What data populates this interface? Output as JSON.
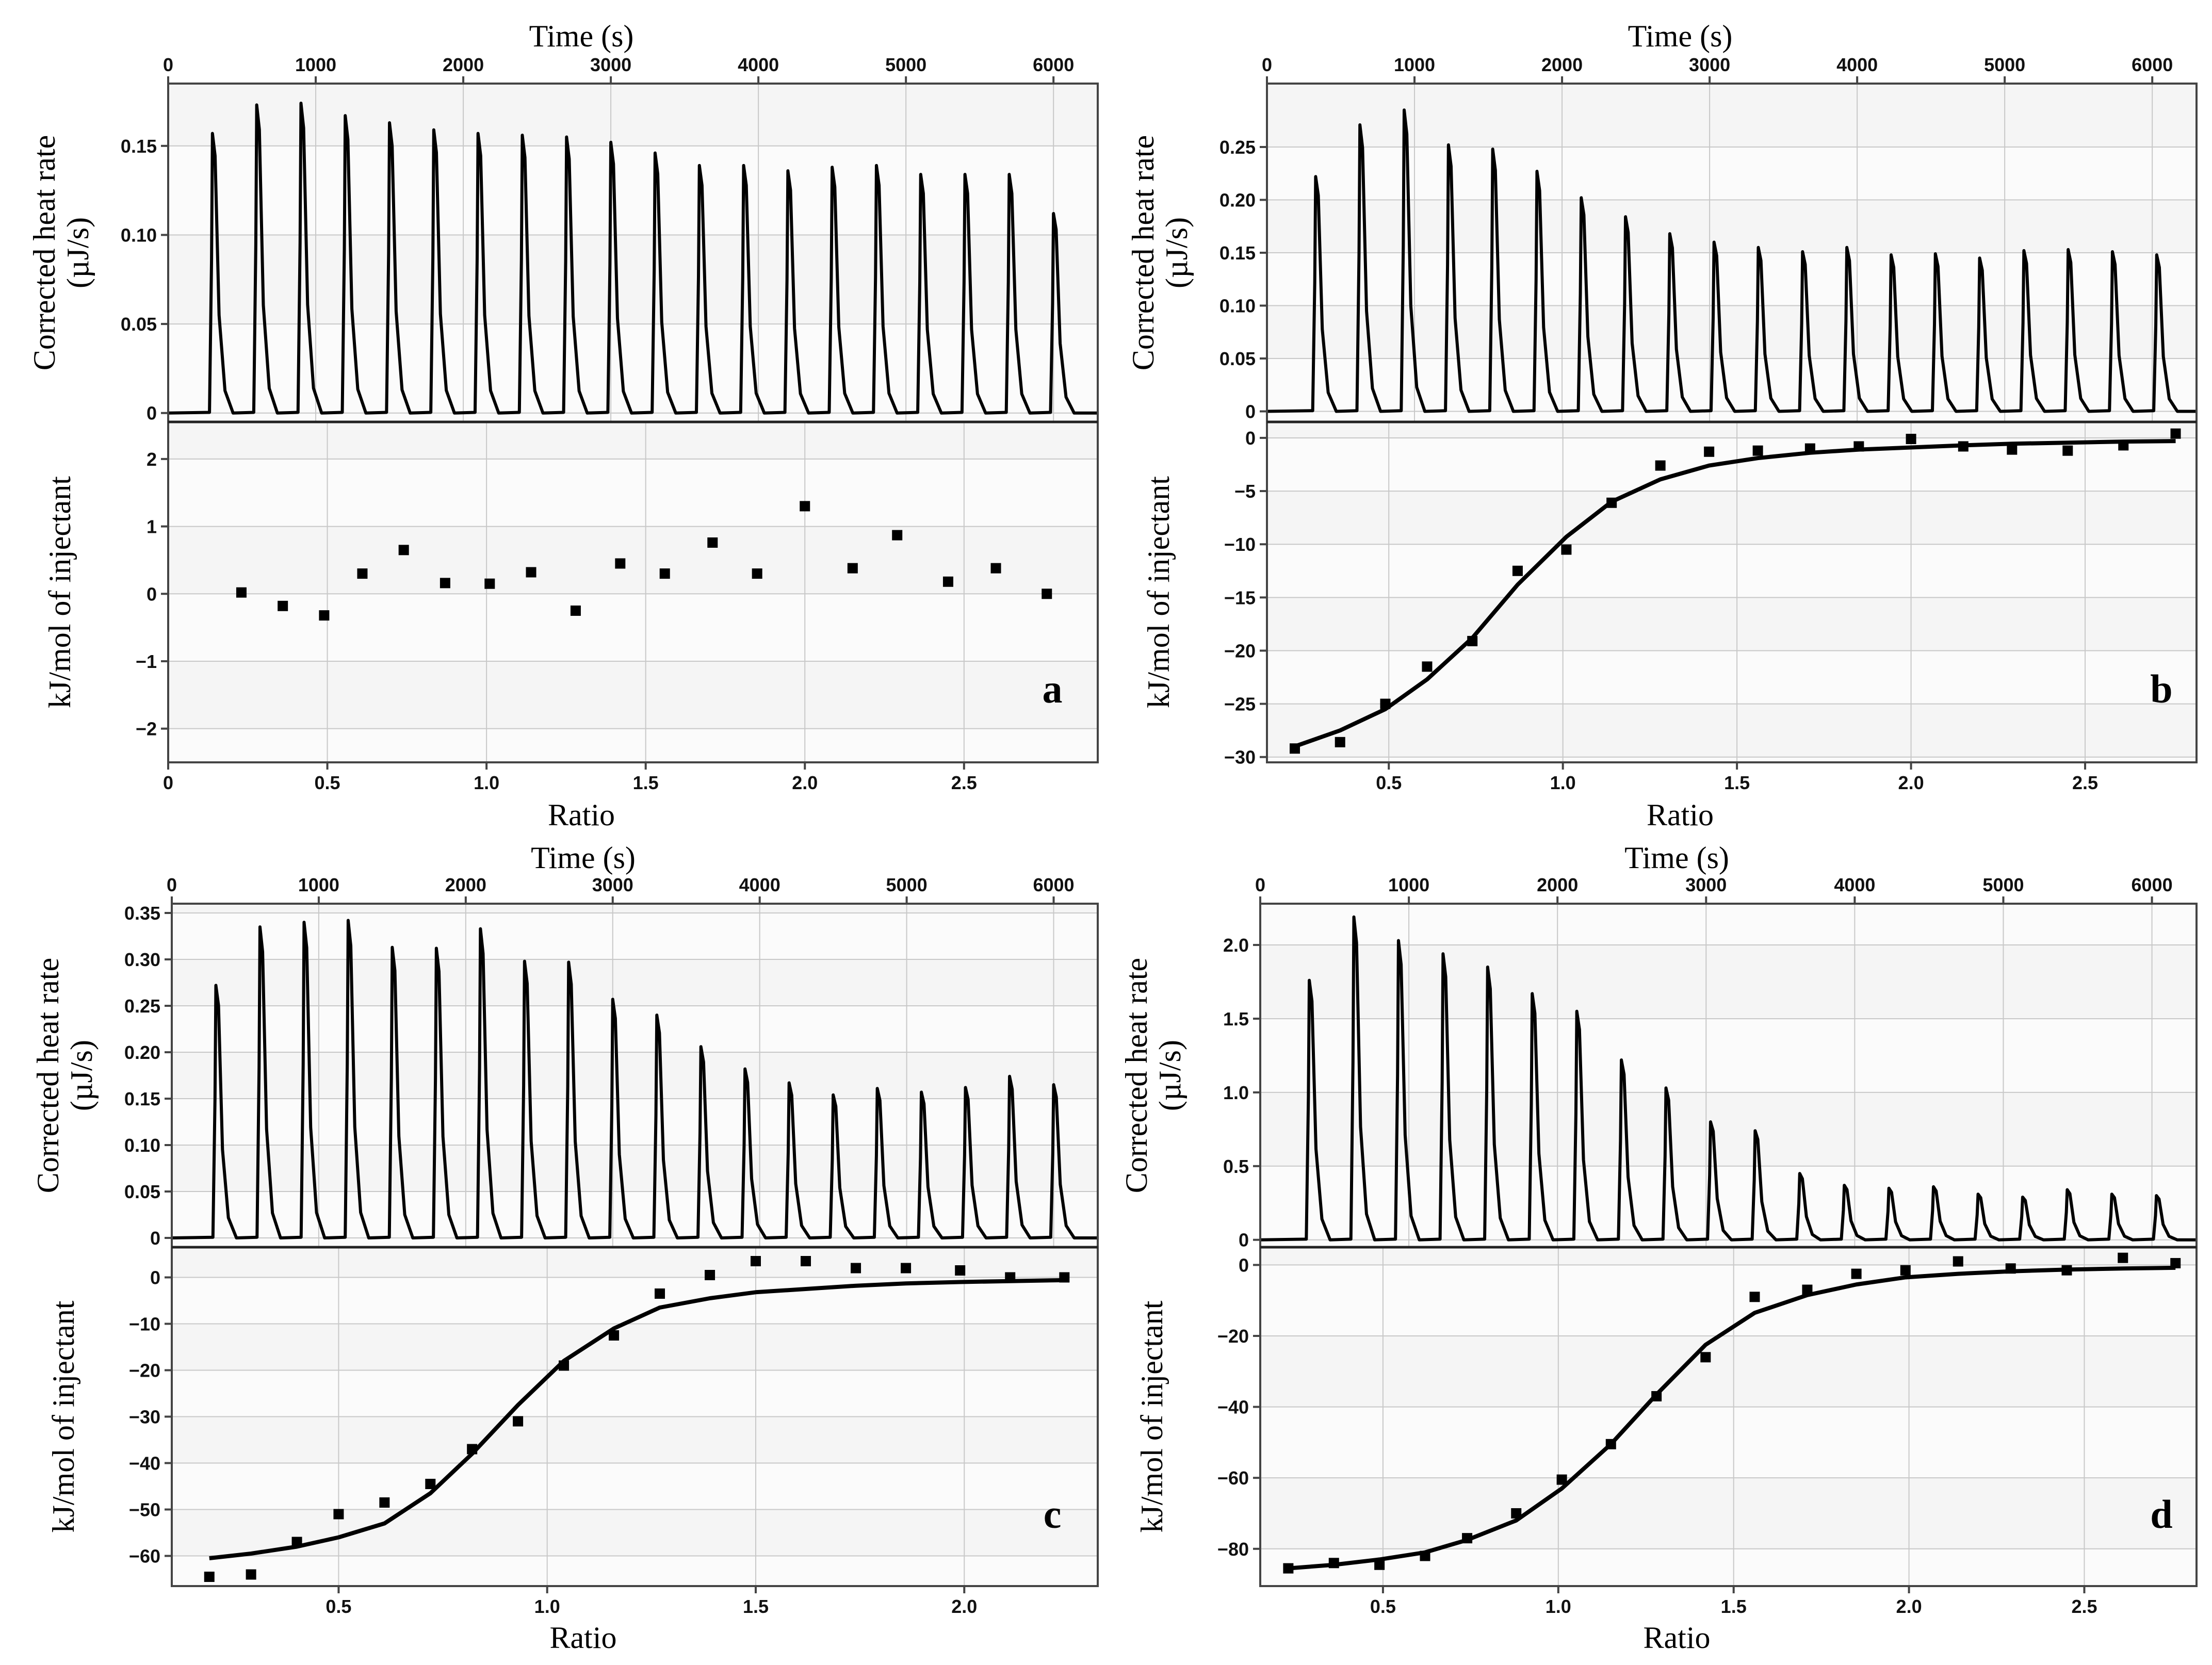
{
  "chart_data": [
    {
      "panel": "a",
      "type": "itc",
      "top": {
        "xlabel": "Time (s)",
        "ylabel": [
          "Corrected heat rate",
          "(µJ/s)"
        ],
        "xlim": [
          0,
          6300
        ],
        "xticks": [
          0,
          1000,
          2000,
          3000,
          4000,
          5000,
          6000
        ],
        "ylim": [
          -0.005,
          0.185
        ],
        "yticks": [
          0,
          0.05,
          0.1,
          0.15
        ],
        "yticklabels": [
          "0",
          "0.05",
          "0.10",
          "0.15"
        ],
        "peak_times": [
          300,
          600,
          900,
          1200,
          1500,
          1800,
          2100,
          2400,
          2700,
          3000,
          3300,
          3600,
          3900,
          4200,
          4500,
          4800,
          5100,
          5400,
          5700,
          6000
        ],
        "peak_heights": [
          0.157,
          0.173,
          0.174,
          0.167,
          0.163,
          0.159,
          0.157,
          0.156,
          0.155,
          0.152,
          0.146,
          0.139,
          0.139,
          0.136,
          0.138,
          0.139,
          0.134,
          0.134,
          0.134,
          0.112
        ]
      },
      "bottom": {
        "xlabel": "Ratio",
        "ylabel": "kJ/mol of injectant",
        "xlim": [
          0,
          2.92
        ],
        "xticks": [
          0,
          0.5,
          1.0,
          1.5,
          2.0,
          2.5
        ],
        "xticklabels": [
          "0",
          "0.5",
          "1.0",
          "1.5",
          "2.0",
          "2.5"
        ],
        "ylim": [
          -2.5,
          2.55
        ],
        "yticks": [
          -2,
          -1,
          0,
          1,
          2
        ],
        "yticklabels": [
          "−2",
          "−1",
          "0",
          "1",
          "2"
        ],
        "points_x": [
          0.23,
          0.36,
          0.49,
          0.61,
          0.74,
          0.87,
          1.01,
          1.14,
          1.28,
          1.42,
          1.56,
          1.71,
          1.85,
          2.0,
          2.15,
          2.29,
          2.45,
          2.6,
          2.76
        ],
        "points_y": [
          0.02,
          -0.18,
          -0.32,
          0.3,
          0.65,
          0.16,
          0.15,
          0.32,
          -0.25,
          0.45,
          0.3,
          0.76,
          0.3,
          1.3,
          0.38,
          0.87,
          0.18,
          0.38,
          0.0
        ],
        "fit_y": null
      }
    },
    {
      "panel": "b",
      "type": "itc",
      "top": {
        "xlabel": "Time (s)",
        "ylabel": [
          "Corrected heat rate",
          "(µJ/s)"
        ],
        "xlim": [
          0,
          6300
        ],
        "xticks": [
          0,
          1000,
          2000,
          3000,
          4000,
          5000,
          6000
        ],
        "ylim": [
          -0.01,
          0.31
        ],
        "yticks": [
          0,
          0.05,
          0.1,
          0.15,
          0.2,
          0.25
        ],
        "yticklabels": [
          "0",
          "0.05",
          "0.10",
          "0.15",
          "0.20",
          "0.25"
        ],
        "peak_times": [
          330,
          630,
          930,
          1230,
          1530,
          1830,
          2130,
          2430,
          2730,
          3030,
          3330,
          3630,
          3930,
          4230,
          4530,
          4830,
          5130,
          5430,
          5730,
          6030
        ],
        "peak_heights": [
          0.222,
          0.271,
          0.285,
          0.252,
          0.248,
          0.227,
          0.202,
          0.184,
          0.168,
          0.16,
          0.155,
          0.151,
          0.155,
          0.148,
          0.149,
          0.145,
          0.152,
          0.153,
          0.151,
          0.148
        ]
      },
      "bottom": {
        "xlabel": "Ratio",
        "ylabel": "kJ/mol of injectant",
        "xlim": [
          0.15,
          2.82
        ],
        "xticks": [
          0.5,
          1.0,
          1.5,
          2.0,
          2.5
        ],
        "xticklabels": [
          "0.5",
          "1.0",
          "1.5",
          "2.0",
          "2.5"
        ],
        "ylim": [
          -30.5,
          1.5
        ],
        "yticks": [
          -30,
          -25,
          -20,
          -15,
          -10,
          -5,
          0
        ],
        "yticklabels": [
          "−30",
          "−25",
          "−20",
          "−15",
          "−10",
          "−5",
          "0"
        ],
        "points_x": [
          0.23,
          0.36,
          0.49,
          0.61,
          0.74,
          0.87,
          1.01,
          1.14,
          1.28,
          1.42,
          1.56,
          1.71,
          1.85,
          2.0,
          2.15,
          2.29,
          2.45,
          2.61,
          2.76
        ],
        "points_y": [
          -29.2,
          -28.6,
          -25.0,
          -21.5,
          -19.1,
          -12.5,
          -10.5,
          -6.1,
          -2.6,
          -1.3,
          -1.2,
          -1.0,
          -0.8,
          -0.1,
          -0.8,
          -1.1,
          -1.2,
          -0.7,
          0.4
        ],
        "fit_y": [
          -29.0,
          -27.5,
          -25.5,
          -22.7,
          -18.8,
          -13.8,
          -9.3,
          -6.0,
          -3.9,
          -2.6,
          -1.9,
          -1.4,
          -1.1,
          -0.9,
          -0.7,
          -0.55,
          -0.45,
          -0.35,
          -0.3
        ]
      }
    },
    {
      "panel": "c",
      "type": "itc",
      "top": {
        "xlabel": "Time (s)",
        "ylabel": [
          "Corrected heat rate",
          "(µJ/s)"
        ],
        "xlim": [
          0,
          6300
        ],
        "xticks": [
          0,
          1000,
          2000,
          3000,
          4000,
          5000,
          6000
        ],
        "ylim": [
          -0.01,
          0.36
        ],
        "yticks": [
          0,
          0.05,
          0.1,
          0.15,
          0.2,
          0.25,
          0.3,
          0.35
        ],
        "yticklabels": [
          "0",
          "0.05",
          "0.10",
          "0.15",
          "0.20",
          "0.25",
          "0.30",
          "0.35"
        ],
        "peak_times": [
          300,
          600,
          900,
          1200,
          1500,
          1800,
          2100,
          2400,
          2700,
          3000,
          3300,
          3600,
          3900,
          4200,
          4500,
          4800,
          5100,
          5400,
          5700,
          6000
        ],
        "peak_heights": [
          0.272,
          0.335,
          0.34,
          0.342,
          0.313,
          0.312,
          0.333,
          0.298,
          0.297,
          0.257,
          0.24,
          0.206,
          0.182,
          0.167,
          0.154,
          0.161,
          0.157,
          0.162,
          0.174,
          0.165
        ]
      },
      "bottom": {
        "xlabel": "Ratio",
        "ylabel": "kJ/mol of injectant",
        "xlim": [
          0.1,
          2.32
        ],
        "xticks": [
          0.5,
          1.0,
          1.5,
          2.0
        ],
        "xticklabels": [
          "0.5",
          "1.0",
          "1.5",
          "2.0"
        ],
        "ylim": [
          -66.5,
          6.5
        ],
        "yticks": [
          -60,
          -50,
          -40,
          -30,
          -20,
          -10,
          0
        ],
        "yticklabels": [
          "−60",
          "−50",
          "−40",
          "−30",
          "−20",
          "−10",
          "0"
        ],
        "points_x": [
          0.19,
          0.29,
          0.4,
          0.5,
          0.61,
          0.72,
          0.82,
          0.93,
          1.04,
          1.16,
          1.27,
          1.39,
          1.5,
          1.62,
          1.74,
          1.86,
          1.99,
          2.11,
          2.24
        ],
        "points_y": [
          -64.5,
          -64.0,
          -57.0,
          -51.0,
          -48.5,
          -44.5,
          -37.0,
          -31.0,
          -19.0,
          -12.5,
          -3.5,
          0.5,
          3.5,
          3.5,
          2.0,
          2.0,
          1.5,
          0.0,
          0.0
        ],
        "fit_y": [
          -60.5,
          -59.5,
          -58.0,
          -56.0,
          -53.0,
          -46.5,
          -38.0,
          -27.5,
          -18.0,
          -11.0,
          -6.5,
          -4.5,
          -3.2,
          -2.5,
          -1.8,
          -1.3,
          -1.0,
          -0.8,
          -0.6
        ]
      }
    },
    {
      "panel": "d",
      "type": "itc",
      "top": {
        "xlabel": "Time (s)",
        "ylabel": [
          "Corrected heat rate",
          "(µJ/s)"
        ],
        "xlim": [
          0,
          6300
        ],
        "xticks": [
          0,
          1000,
          2000,
          3000,
          4000,
          5000,
          6000
        ],
        "ylim": [
          -0.05,
          2.28
        ],
        "yticks": [
          0,
          0.5,
          1.0,
          1.5,
          2.0
        ],
        "yticklabels": [
          "0",
          "0.5",
          "1.0",
          "1.5",
          "2.0"
        ],
        "peak_times": [
          330,
          630,
          930,
          1230,
          1530,
          1830,
          2130,
          2430,
          2730,
          3030,
          3330,
          3630,
          3930,
          4230,
          4530,
          4830,
          5130,
          5430,
          5730,
          6030
        ],
        "peak_heights": [
          1.76,
          2.19,
          2.03,
          1.94,
          1.85,
          1.67,
          1.55,
          1.22,
          1.03,
          0.8,
          0.74,
          0.45,
          0.37,
          0.35,
          0.36,
          0.31,
          0.29,
          0.34,
          0.31,
          0.3
        ]
      },
      "bottom": {
        "xlabel": "Ratio",
        "ylabel": "kJ/mol of injectant",
        "xlim": [
          0.15,
          2.82
        ],
        "xticks": [
          0.5,
          1.0,
          1.5,
          2.0,
          2.5
        ],
        "xticklabels": [
          "0.5",
          "1.0",
          "1.5",
          "2.0",
          "2.5"
        ],
        "ylim": [
          -90.5,
          5.0
        ],
        "yticks": [
          -80,
          -60,
          -40,
          -20,
          0
        ],
        "yticklabels": [
          "−80",
          "−60",
          "−40",
          "−20",
          "0"
        ],
        "points_x": [
          0.23,
          0.36,
          0.49,
          0.62,
          0.74,
          0.88,
          1.01,
          1.15,
          1.28,
          1.42,
          1.56,
          1.71,
          1.85,
          1.99,
          2.14,
          2.29,
          2.45,
          2.61,
          2.76
        ],
        "points_y": [
          -85.5,
          -84.0,
          -84.5,
          -82.0,
          -77.0,
          -70.0,
          -60.5,
          -50.5,
          -37.0,
          -26.0,
          -9.0,
          -7.0,
          -2.5,
          -1.5,
          1.0,
          -1.0,
          -1.5,
          2.0,
          0.5
        ],
        "fit_y": [
          -85.5,
          -84.5,
          -83.0,
          -81.0,
          -77.5,
          -72.0,
          -63.0,
          -50.5,
          -36.5,
          -22.5,
          -13.5,
          -8.5,
          -5.5,
          -3.5,
          -2.5,
          -1.8,
          -1.3,
          -1.0,
          -0.8
        ]
      }
    }
  ]
}
